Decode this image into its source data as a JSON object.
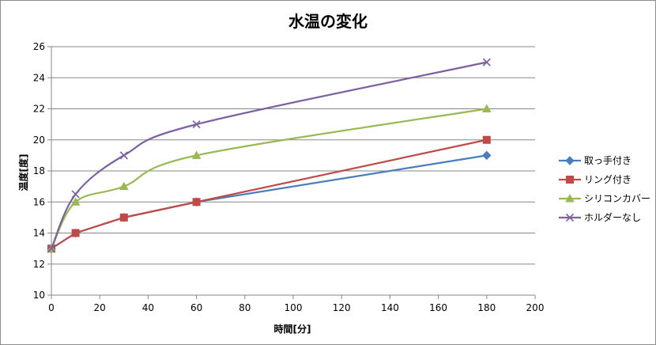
{
  "chart_data": {
    "type": "line",
    "title": "水温の変化",
    "xlabel": "時間[分]",
    "ylabel": "温度[度]",
    "xlim": [
      0,
      200
    ],
    "ylim": [
      10,
      26
    ],
    "xticks": [
      0,
      20,
      40,
      60,
      80,
      100,
      120,
      140,
      160,
      180,
      200
    ],
    "yticks": [
      10,
      12,
      14,
      16,
      18,
      20,
      22,
      24,
      26
    ],
    "grid": "horizontal",
    "legend_position": "right",
    "x": [
      0,
      10,
      30,
      60,
      180
    ],
    "series": [
      {
        "name": "取っ手付き",
        "values": [
          13,
          14,
          15,
          16,
          19
        ],
        "color": "#4a7ebb",
        "marker": "diamond",
        "curve": "straight"
      },
      {
        "name": "リング付き",
        "values": [
          13,
          14,
          15,
          16,
          20
        ],
        "color": "#be4b48",
        "marker": "square",
        "curve": "straight"
      },
      {
        "name": "シリコンカバー",
        "values": [
          13,
          16,
          17,
          19,
          22
        ],
        "color": "#98b954",
        "marker": "triangle",
        "curve": "smooth"
      },
      {
        "name": "ホルダーなし",
        "values": [
          13,
          16.5,
          19,
          21,
          25
        ],
        "color": "#7d60a0",
        "marker": "x",
        "curve": "smooth"
      }
    ]
  }
}
